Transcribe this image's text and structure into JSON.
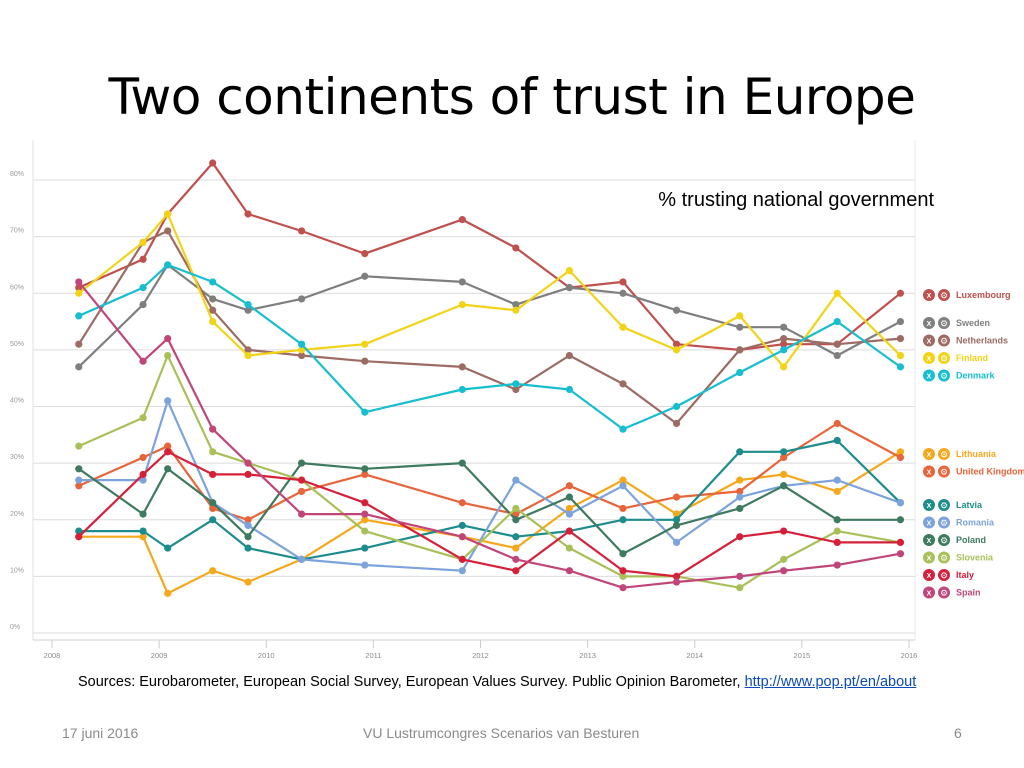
{
  "slide": {
    "title": "Two continents of trust in Europe",
    "sources_text": "Sources: Eurobarometer, European Social Survey, European Values Survey. Public Opinion Barometer, ",
    "sources_link": "http://www.pop.pt/en/about",
    "footer_date": "17 juni 2016",
    "footer_event": "VU Lustrumcongres Scenarios van Besturen",
    "page_number": "6"
  },
  "chart_data": {
    "type": "line",
    "title": "% trusting national government",
    "xlabel": "",
    "ylabel": "",
    "xlim": [
      2008,
      2016
    ],
    "ylim": [
      0,
      85
    ],
    "x_ticks": [
      2008,
      2009,
      2010,
      2011,
      2012,
      2013,
      2014,
      2015,
      2016
    ],
    "x_tick_labels": [
      "2008",
      "2009",
      "2010",
      "2011",
      "2012",
      "2013",
      "2014",
      "2015",
      "2016"
    ],
    "y_ticks": [
      0,
      10,
      20,
      30,
      40,
      50,
      60,
      70,
      80
    ],
    "y_tick_labels": [
      "0%",
      "10%",
      "20%",
      "30%",
      "40%",
      "50%",
      "60%",
      "70%",
      "80%"
    ],
    "grid": true,
    "legend_position": "right",
    "legend_button_x": "X",
    "legend_button_gear": "⚙",
    "series": [
      {
        "name": "Luxembourg",
        "color": "#c0504d",
        "group": 1,
        "points": [
          [
            2008.25,
            61
          ],
          [
            2008.85,
            66
          ],
          [
            2009.08,
            74
          ],
          [
            2009.5,
            83
          ],
          [
            2009.83,
            74
          ],
          [
            2010.33,
            71
          ],
          [
            2010.92,
            67
          ],
          [
            2011.83,
            73
          ],
          [
            2012.33,
            68
          ],
          [
            2012.83,
            61
          ],
          [
            2013.33,
            62
          ],
          [
            2013.83,
            51
          ],
          [
            2014.42,
            50
          ],
          [
            2014.83,
            51
          ],
          [
            2015.33,
            51
          ],
          [
            2015.92,
            60
          ]
        ]
      },
      {
        "name": "Sweden",
        "color": "#7f7f7f",
        "group": 1,
        "points": [
          [
            2008.25,
            47
          ],
          [
            2008.85,
            58
          ],
          [
            2009.08,
            65
          ],
          [
            2009.5,
            59
          ],
          [
            2009.83,
            57
          ],
          [
            2010.33,
            59
          ],
          [
            2010.92,
            63
          ],
          [
            2011.83,
            62
          ],
          [
            2012.33,
            58
          ],
          [
            2012.83,
            61
          ],
          [
            2013.33,
            60
          ],
          [
            2013.83,
            57
          ],
          [
            2014.42,
            54
          ],
          [
            2014.83,
            54
          ],
          [
            2015.33,
            49
          ],
          [
            2015.92,
            55
          ]
        ]
      },
      {
        "name": "Netherlands",
        "color": "#9c6b63",
        "group": 1,
        "points": [
          [
            2008.25,
            51
          ],
          [
            2008.85,
            69
          ],
          [
            2009.08,
            71
          ],
          [
            2009.5,
            57
          ],
          [
            2009.83,
            50
          ],
          [
            2010.33,
            49
          ],
          [
            2010.92,
            48
          ],
          [
            2011.83,
            47
          ],
          [
            2012.33,
            43
          ],
          [
            2012.83,
            49
          ],
          [
            2013.33,
            44
          ],
          [
            2013.83,
            37
          ],
          [
            2014.42,
            50
          ],
          [
            2014.83,
            52
          ],
          [
            2015.33,
            51
          ],
          [
            2015.92,
            52
          ]
        ]
      },
      {
        "name": "Finland",
        "color": "#f2d316",
        "group": 1,
        "points": [
          [
            2008.25,
            60
          ],
          [
            2008.85,
            69
          ],
          [
            2009.08,
            74
          ],
          [
            2009.5,
            55
          ],
          [
            2009.83,
            49
          ],
          [
            2010.33,
            50
          ],
          [
            2010.92,
            51
          ],
          [
            2011.83,
            58
          ],
          [
            2012.33,
            57
          ],
          [
            2012.83,
            64
          ],
          [
            2013.33,
            54
          ],
          [
            2013.83,
            50
          ],
          [
            2014.42,
            56
          ],
          [
            2014.83,
            47
          ],
          [
            2015.33,
            60
          ],
          [
            2015.92,
            49
          ]
        ]
      },
      {
        "name": "Denmark",
        "color": "#17becf",
        "group": 1,
        "points": [
          [
            2008.25,
            56
          ],
          [
            2008.85,
            61
          ],
          [
            2009.08,
            65
          ],
          [
            2009.5,
            62
          ],
          [
            2009.83,
            58
          ],
          [
            2010.33,
            51
          ],
          [
            2010.92,
            39
          ],
          [
            2011.83,
            43
          ],
          [
            2012.33,
            44
          ],
          [
            2012.83,
            43
          ],
          [
            2013.33,
            36
          ],
          [
            2013.83,
            40
          ],
          [
            2014.42,
            46
          ],
          [
            2014.83,
            50
          ],
          [
            2015.33,
            55
          ],
          [
            2015.92,
            47
          ]
        ]
      },
      {
        "name": "Lithuania",
        "color": "#f5a81c",
        "group": 2,
        "points": [
          [
            2008.25,
            17
          ],
          [
            2008.85,
            17
          ],
          [
            2009.08,
            7
          ],
          [
            2009.5,
            11
          ],
          [
            2009.83,
            9
          ],
          [
            2010.33,
            13
          ],
          [
            2010.92,
            20
          ],
          [
            2011.83,
            17
          ],
          [
            2012.33,
            15
          ],
          [
            2012.83,
            22
          ],
          [
            2013.33,
            27
          ],
          [
            2013.83,
            21
          ],
          [
            2014.42,
            27
          ],
          [
            2014.83,
            28
          ],
          [
            2015.33,
            25
          ],
          [
            2015.92,
            32
          ]
        ]
      },
      {
        "name": "United Kingdom",
        "color": "#e8643a",
        "group": 2,
        "points": [
          [
            2008.25,
            26
          ],
          [
            2008.85,
            31
          ],
          [
            2009.08,
            33
          ],
          [
            2009.5,
            22
          ],
          [
            2009.83,
            20
          ],
          [
            2010.33,
            25
          ],
          [
            2010.92,
            28
          ],
          [
            2011.83,
            23
          ],
          [
            2012.33,
            21
          ],
          [
            2012.83,
            26
          ],
          [
            2013.33,
            22
          ],
          [
            2013.83,
            24
          ],
          [
            2014.42,
            25
          ],
          [
            2014.83,
            31
          ],
          [
            2015.33,
            37
          ],
          [
            2015.92,
            31
          ]
        ]
      },
      {
        "name": "Latvia",
        "color": "#1e8c8c",
        "group": 3,
        "points": [
          [
            2008.25,
            18
          ],
          [
            2008.85,
            18
          ],
          [
            2009.08,
            15
          ],
          [
            2009.5,
            20
          ],
          [
            2009.83,
            15
          ],
          [
            2010.33,
            13
          ],
          [
            2010.92,
            15
          ],
          [
            2011.83,
            19
          ],
          [
            2012.33,
            17
          ],
          [
            2012.83,
            18
          ],
          [
            2013.33,
            20
          ],
          [
            2013.83,
            20
          ],
          [
            2014.42,
            32
          ],
          [
            2014.83,
            32
          ],
          [
            2015.33,
            34
          ],
          [
            2015.92,
            23
          ]
        ]
      },
      {
        "name": "Romania",
        "color": "#7ca3db",
        "group": 3,
        "points": [
          [
            2008.25,
            27
          ],
          [
            2008.85,
            27
          ],
          [
            2009.08,
            41
          ],
          [
            2009.5,
            23
          ],
          [
            2009.83,
            19
          ],
          [
            2010.33,
            13
          ],
          [
            2010.92,
            12
          ],
          [
            2011.83,
            11
          ],
          [
            2012.33,
            27
          ],
          [
            2012.83,
            21
          ],
          [
            2013.33,
            26
          ],
          [
            2013.83,
            16
          ],
          [
            2014.42,
            24
          ],
          [
            2014.83,
            26
          ],
          [
            2015.33,
            27
          ],
          [
            2015.92,
            23
          ]
        ]
      },
      {
        "name": "Poland",
        "color": "#3d7a5f",
        "group": 3,
        "points": [
          [
            2008.25,
            29
          ],
          [
            2008.85,
            21
          ],
          [
            2009.08,
            29
          ],
          [
            2009.5,
            23
          ],
          [
            2009.83,
            17
          ],
          [
            2010.33,
            30
          ],
          [
            2010.92,
            29
          ],
          [
            2011.83,
            30
          ],
          [
            2012.33,
            20
          ],
          [
            2012.83,
            24
          ],
          [
            2013.33,
            14
          ],
          [
            2013.83,
            19
          ],
          [
            2014.42,
            22
          ],
          [
            2014.83,
            26
          ],
          [
            2015.33,
            20
          ],
          [
            2015.92,
            20
          ]
        ]
      },
      {
        "name": "Slovenia",
        "color": "#a9c05a",
        "group": 3,
        "points": [
          [
            2008.25,
            33
          ],
          [
            2008.85,
            38
          ],
          [
            2009.08,
            49
          ],
          [
            2009.5,
            32
          ],
          [
            2009.83,
            30
          ],
          [
            2010.33,
            27
          ],
          [
            2010.92,
            18
          ],
          [
            2011.83,
            13
          ],
          [
            2012.33,
            22
          ],
          [
            2012.83,
            15
          ],
          [
            2013.33,
            10
          ],
          [
            2013.83,
            10
          ],
          [
            2014.42,
            8
          ],
          [
            2014.83,
            13
          ],
          [
            2015.33,
            18
          ],
          [
            2015.92,
            16
          ]
        ]
      },
      {
        "name": "Italy",
        "color": "#d6203a",
        "group": 3,
        "points": [
          [
            2008.25,
            17
          ],
          [
            2008.85,
            28
          ],
          [
            2009.08,
            32
          ],
          [
            2009.5,
            28
          ],
          [
            2009.83,
            28
          ],
          [
            2010.33,
            27
          ],
          [
            2010.92,
            23
          ],
          [
            2011.83,
            13
          ],
          [
            2012.33,
            11
          ],
          [
            2012.83,
            18
          ],
          [
            2013.33,
            11
          ],
          [
            2013.83,
            10
          ],
          [
            2014.42,
            17
          ],
          [
            2014.83,
            18
          ],
          [
            2015.33,
            16
          ],
          [
            2015.92,
            16
          ]
        ]
      },
      {
        "name": "Spain",
        "color": "#c0467a",
        "group": 3,
        "points": [
          [
            2008.25,
            62
          ],
          [
            2008.85,
            48
          ],
          [
            2009.08,
            52
          ],
          [
            2009.5,
            36
          ],
          [
            2009.83,
            30
          ],
          [
            2010.33,
            21
          ],
          [
            2010.92,
            21
          ],
          [
            2011.83,
            17
          ],
          [
            2012.33,
            13
          ],
          [
            2012.83,
            11
          ],
          [
            2013.33,
            8
          ],
          [
            2013.83,
            9
          ],
          [
            2014.42,
            10
          ],
          [
            2014.83,
            11
          ],
          [
            2015.33,
            12
          ],
          [
            2015.92,
            14
          ]
        ]
      }
    ]
  }
}
